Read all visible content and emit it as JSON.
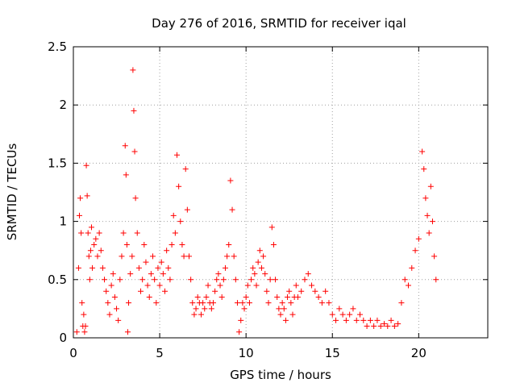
{
  "chart_data": {
    "type": "scatter",
    "title": "Day 276 of 2016, SRMTID for receiver iqal",
    "xlabel": "GPS time / hours",
    "ylabel": "SRMTID / TECUs",
    "xlim": [
      0,
      24
    ],
    "ylim": [
      0,
      2.5
    ],
    "xticks": [
      0,
      5,
      10,
      15,
      20
    ],
    "yticks": [
      0,
      0.5,
      1,
      1.5,
      2,
      2.5
    ],
    "xtick_labels": [
      "0",
      "5",
      "10",
      "15",
      "20"
    ],
    "ytick_labels": [
      "0",
      "0.5",
      "1",
      "1.5",
      "2",
      "2.5"
    ],
    "grid": true,
    "marker": "+",
    "series": [
      {
        "name": "SRMTID",
        "color": "#ff0000",
        "points": [
          [
            0.2,
            0.05
          ],
          [
            0.3,
            0.6
          ],
          [
            0.35,
            1.05
          ],
          [
            0.4,
            1.2
          ],
          [
            0.45,
            0.9
          ],
          [
            0.5,
            0.3
          ],
          [
            0.55,
            0.1
          ],
          [
            0.6,
            0.2
          ],
          [
            0.65,
            0.05
          ],
          [
            0.7,
            0.1
          ],
          [
            0.75,
            1.48
          ],
          [
            0.8,
            1.22
          ],
          [
            0.85,
            0.9
          ],
          [
            0.9,
            0.7
          ],
          [
            0.95,
            0.5
          ],
          [
            1.0,
            0.75
          ],
          [
            1.05,
            0.95
          ],
          [
            1.1,
            0.6
          ],
          [
            1.2,
            0.8
          ],
          [
            1.3,
            0.85
          ],
          [
            1.4,
            0.7
          ],
          [
            1.5,
            0.9
          ],
          [
            1.6,
            0.75
          ],
          [
            1.7,
            0.6
          ],
          [
            1.8,
            0.5
          ],
          [
            1.9,
            0.4
          ],
          [
            2.0,
            0.3
          ],
          [
            2.1,
            0.2
          ],
          [
            2.2,
            0.45
          ],
          [
            2.3,
            0.55
          ],
          [
            2.4,
            0.35
          ],
          [
            2.5,
            0.25
          ],
          [
            2.6,
            0.15
          ],
          [
            2.7,
            0.5
          ],
          [
            2.8,
            0.7
          ],
          [
            2.9,
            0.9
          ],
          [
            3.0,
            1.65
          ],
          [
            3.05,
            1.4
          ],
          [
            3.1,
            0.8
          ],
          [
            3.15,
            0.05
          ],
          [
            3.2,
            0.3
          ],
          [
            3.3,
            0.55
          ],
          [
            3.4,
            0.7
          ],
          [
            3.45,
            2.3
          ],
          [
            3.5,
            1.95
          ],
          [
            3.55,
            1.6
          ],
          [
            3.6,
            1.2
          ],
          [
            3.7,
            0.9
          ],
          [
            3.8,
            0.6
          ],
          [
            3.9,
            0.4
          ],
          [
            4.0,
            0.5
          ],
          [
            4.1,
            0.8
          ],
          [
            4.2,
            0.65
          ],
          [
            4.3,
            0.45
          ],
          [
            4.4,
            0.35
          ],
          [
            4.5,
            0.55
          ],
          [
            4.6,
            0.7
          ],
          [
            4.7,
            0.5
          ],
          [
            4.8,
            0.3
          ],
          [
            4.9,
            0.6
          ],
          [
            5.0,
            0.45
          ],
          [
            5.1,
            0.65
          ],
          [
            5.2,
            0.55
          ],
          [
            5.3,
            0.4
          ],
          [
            5.4,
            0.75
          ],
          [
            5.5,
            0.6
          ],
          [
            5.6,
            0.5
          ],
          [
            5.7,
            0.8
          ],
          [
            5.8,
            1.05
          ],
          [
            5.9,
            0.9
          ],
          [
            6.0,
            1.57
          ],
          [
            6.1,
            1.3
          ],
          [
            6.2,
            1.0
          ],
          [
            6.3,
            0.8
          ],
          [
            6.4,
            0.7
          ],
          [
            6.5,
            1.45
          ],
          [
            6.6,
            1.1
          ],
          [
            6.7,
            0.7
          ],
          [
            6.8,
            0.5
          ],
          [
            6.9,
            0.3
          ],
          [
            7.0,
            0.2
          ],
          [
            7.1,
            0.25
          ],
          [
            7.2,
            0.35
          ],
          [
            7.3,
            0.3
          ],
          [
            7.4,
            0.2
          ],
          [
            7.5,
            0.3
          ],
          [
            7.6,
            0.25
          ],
          [
            7.7,
            0.35
          ],
          [
            7.8,
            0.45
          ],
          [
            7.9,
            0.3
          ],
          [
            8.0,
            0.25
          ],
          [
            8.1,
            0.3
          ],
          [
            8.2,
            0.4
          ],
          [
            8.3,
            0.5
          ],
          [
            8.4,
            0.55
          ],
          [
            8.5,
            0.45
          ],
          [
            8.6,
            0.35
          ],
          [
            8.7,
            0.5
          ],
          [
            8.8,
            0.6
          ],
          [
            8.9,
            0.7
          ],
          [
            9.0,
            0.8
          ],
          [
            9.1,
            1.35
          ],
          [
            9.2,
            1.1
          ],
          [
            9.3,
            0.7
          ],
          [
            9.4,
            0.5
          ],
          [
            9.5,
            0.3
          ],
          [
            9.6,
            0.05
          ],
          [
            9.7,
            0.15
          ],
          [
            9.8,
            0.3
          ],
          [
            9.9,
            0.25
          ],
          [
            10.0,
            0.35
          ],
          [
            10.1,
            0.45
          ],
          [
            10.2,
            0.3
          ],
          [
            10.3,
            0.5
          ],
          [
            10.4,
            0.6
          ],
          [
            10.5,
            0.55
          ],
          [
            10.6,
            0.45
          ],
          [
            10.7,
            0.65
          ],
          [
            10.8,
            0.75
          ],
          [
            10.9,
            0.6
          ],
          [
            11.0,
            0.7
          ],
          [
            11.1,
            0.55
          ],
          [
            11.2,
            0.4
          ],
          [
            11.3,
            0.3
          ],
          [
            11.4,
            0.5
          ],
          [
            11.5,
            0.95
          ],
          [
            11.6,
            0.8
          ],
          [
            11.7,
            0.5
          ],
          [
            11.8,
            0.35
          ],
          [
            11.9,
            0.25
          ],
          [
            12.0,
            0.2
          ],
          [
            12.1,
            0.3
          ],
          [
            12.2,
            0.25
          ],
          [
            12.3,
            0.15
          ],
          [
            12.4,
            0.35
          ],
          [
            12.5,
            0.4
          ],
          [
            12.6,
            0.3
          ],
          [
            12.7,
            0.2
          ],
          [
            12.8,
            0.35
          ],
          [
            12.9,
            0.45
          ],
          [
            13.0,
            0.35
          ],
          [
            13.2,
            0.4
          ],
          [
            13.4,
            0.5
          ],
          [
            13.6,
            0.55
          ],
          [
            13.8,
            0.45
          ],
          [
            14.0,
            0.4
          ],
          [
            14.2,
            0.35
          ],
          [
            14.4,
            0.3
          ],
          [
            14.6,
            0.4
          ],
          [
            14.8,
            0.3
          ],
          [
            15.0,
            0.2
          ],
          [
            15.2,
            0.15
          ],
          [
            15.4,
            0.25
          ],
          [
            15.6,
            0.2
          ],
          [
            15.8,
            0.15
          ],
          [
            16.0,
            0.2
          ],
          [
            16.2,
            0.25
          ],
          [
            16.4,
            0.15
          ],
          [
            16.6,
            0.2
          ],
          [
            16.8,
            0.15
          ],
          [
            17.0,
            0.1
          ],
          [
            17.2,
            0.15
          ],
          [
            17.4,
            0.1
          ],
          [
            17.6,
            0.15
          ],
          [
            17.8,
            0.1
          ],
          [
            18.0,
            0.12
          ],
          [
            18.2,
            0.1
          ],
          [
            18.4,
            0.15
          ],
          [
            18.6,
            0.1
          ],
          [
            18.8,
            0.12
          ],
          [
            19.0,
            0.3
          ],
          [
            19.2,
            0.5
          ],
          [
            19.4,
            0.45
          ],
          [
            19.6,
            0.6
          ],
          [
            19.8,
            0.75
          ],
          [
            20.0,
            0.85
          ],
          [
            20.2,
            1.6
          ],
          [
            20.3,
            1.45
          ],
          [
            20.4,
            1.2
          ],
          [
            20.5,
            1.05
          ],
          [
            20.6,
            0.9
          ],
          [
            20.7,
            1.3
          ],
          [
            20.8,
            1.0
          ],
          [
            20.9,
            0.7
          ],
          [
            21.0,
            0.5
          ]
        ]
      }
    ]
  }
}
